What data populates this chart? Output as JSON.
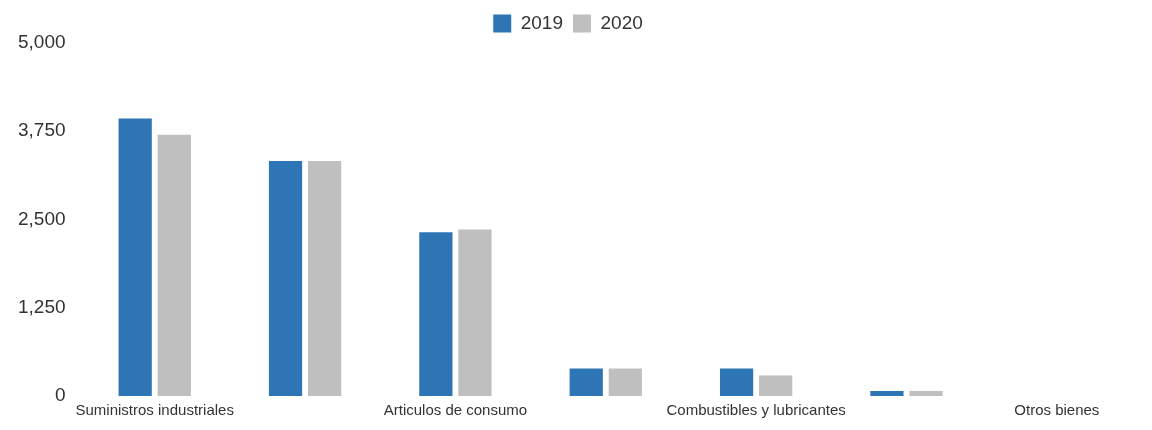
{
  "chart_data": {
    "type": "bar",
    "categories": [
      "Suministros industriales",
      null,
      "Articulos de consumo",
      null,
      "Combustibles y lubricantes",
      null,
      "Otros bienes"
    ],
    "series": [
      {
        "name": "2019",
        "color": "#2e75b6",
        "values": [
          3930,
          3330,
          2320,
          390,
          390,
          70,
          0
        ]
      },
      {
        "name": "2020",
        "color": "#bfbfbf",
        "values": [
          3700,
          3330,
          2360,
          390,
          290,
          70,
          0
        ]
      }
    ],
    "ylim": [
      0,
      5000
    ],
    "yticks": [
      0,
      {
        "value": 1250,
        "label": "1,250"
      },
      {
        "value": 2500,
        "label": "2,500"
      },
      {
        "value": 3750,
        "label": "3,750"
      },
      {
        "value": 5000,
        "label": "5,000"
      }
    ],
    "grid": false,
    "legend": "top"
  }
}
